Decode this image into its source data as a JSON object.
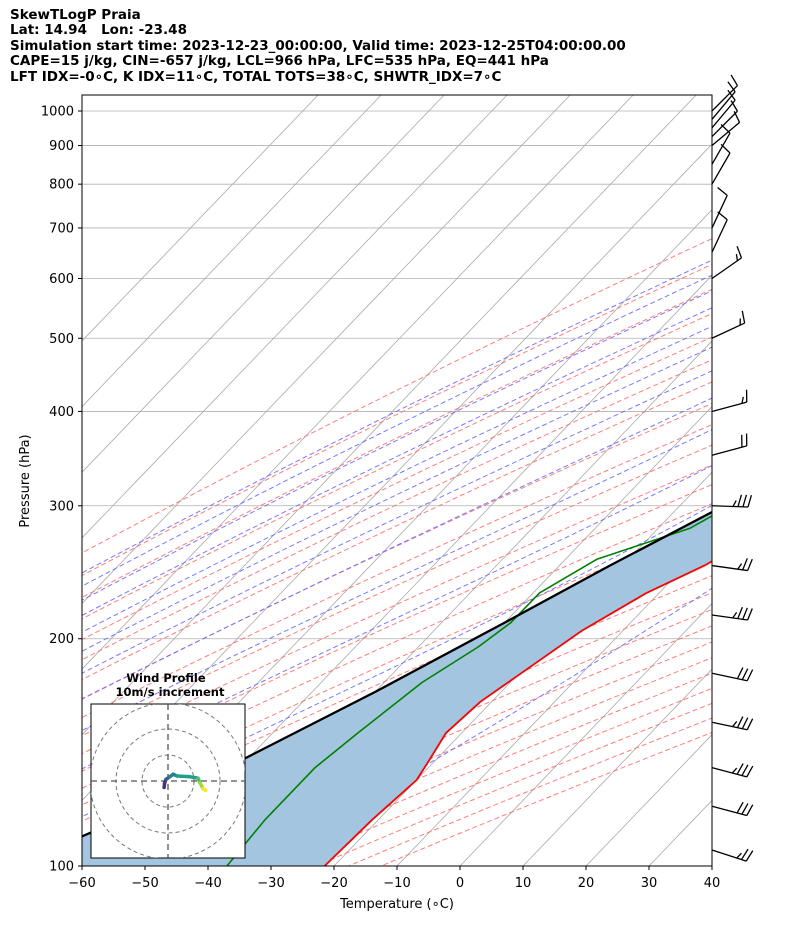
{
  "title": {
    "line1": "SkewTLogP Praia",
    "line2": "Lat: 14.94   Lon: -23.48",
    "line3": "Simulation start time: 2023-12-23_00:00:00, Valid time: 2023-12-25T04:00:00.00",
    "line4": "CAPE=15 j/kg, CIN=-657 j/kg, LCL=966 hPa, LFC=535 hPa, EQ=441 hPa",
    "line5": "LFT IDX=-0∘C, K IDX=11∘C, TOTAL TOTS=38∘C, SHWTR_IDX=7∘C"
  },
  "chart_data": {
    "type": "skew-t",
    "xlabel": "Temperature (∘C)",
    "ylabel": "Pressure (hPa)",
    "xlim": [
      -60,
      40
    ],
    "ylim": [
      1050,
      100
    ],
    "y_scale": "log",
    "x_ticks": [
      "−60",
      "−50",
      "−40",
      "−30",
      "−20",
      "−10",
      "0",
      "10",
      "20",
      "30",
      "40"
    ],
    "y_ticks": [
      "100",
      "200",
      "300",
      "400",
      "500",
      "600",
      "700",
      "800",
      "900",
      "1000"
    ],
    "grid": true,
    "series": [
      {
        "key": "temperature",
        "color": "#ff0000",
        "points": [
          [
            22.8,
            1000
          ],
          [
            20,
            970
          ],
          [
            23,
            925
          ],
          [
            24.5,
            900
          ],
          [
            25,
            850
          ],
          [
            24,
            800
          ],
          [
            22,
            750
          ],
          [
            19.5,
            700
          ],
          [
            16.5,
            650
          ],
          [
            13.5,
            600
          ],
          [
            10.5,
            550
          ],
          [
            8,
            500
          ],
          [
            5.5,
            450
          ],
          [
            3.5,
            400
          ],
          [
            1.2,
            350
          ],
          [
            0.3,
            300
          ],
          [
            -3,
            275
          ],
          [
            -7,
            250
          ],
          [
            -12,
            230
          ],
          [
            -16.5,
            205
          ],
          [
            -19,
            185
          ],
          [
            -21.8,
            165
          ],
          [
            -22.5,
            150
          ],
          [
            -21,
            138
          ],
          [
            -20,
            130
          ],
          [
            -21,
            115
          ],
          [
            -21.5,
            100
          ]
        ]
      },
      {
        "key": "dewpoint",
        "color": "#008000",
        "points": [
          [
            20,
            1000
          ],
          [
            21,
            980
          ],
          [
            0,
            905
          ],
          [
            5,
            870
          ],
          [
            5.5,
            830
          ],
          [
            3,
            780
          ],
          [
            -0.5,
            730
          ],
          [
            -3,
            680
          ],
          [
            -3,
            650
          ],
          [
            -1,
            600
          ],
          [
            1,
            550
          ],
          [
            1,
            500
          ],
          [
            -2,
            450
          ],
          [
            -9,
            400
          ],
          [
            -12,
            350
          ],
          [
            -12,
            300
          ],
          [
            -15,
            280
          ],
          [
            -25,
            255
          ],
          [
            -29,
            230
          ],
          [
            -29,
            210
          ],
          [
            -30.5,
            195
          ],
          [
            -34,
            175
          ],
          [
            -36.5,
            150
          ],
          [
            -38,
            135
          ],
          [
            -38,
            115
          ],
          [
            -37,
            100
          ]
        ]
      },
      {
        "key": "parcel",
        "color": "#000000",
        "points": [
          [
            22.8,
            1000
          ],
          [
            21,
            966
          ],
          [
            19.6,
            900
          ],
          [
            17.6,
            800
          ],
          [
            15.2,
            700
          ],
          [
            13.7,
            650
          ],
          [
            12,
            600
          ],
          [
            10.3,
            550
          ],
          [
            8,
            500
          ],
          [
            5.6,
            450
          ],
          [
            3.5,
            441
          ],
          [
            1.1,
            400
          ],
          [
            -5.5,
            350
          ],
          [
            -13,
            300
          ],
          [
            -22,
            250
          ],
          [
            -30,
            210
          ],
          [
            -40,
            170
          ],
          [
            -52,
            135
          ],
          [
            -61,
            115
          ],
          [
            -71,
            100
          ]
        ]
      }
    ],
    "cape_shading_color": "#a3c5e0",
    "isotherms_color": "#aaaaaa",
    "dry_adiabats_color": "#ff6666",
    "moist_adiabats_color": "#6a6aff",
    "mixing_ratio_color": "#9955cc",
    "wind_barbs": [
      {
        "p": 1000,
        "speed_kt": 10,
        "dir_deg": 45
      },
      {
        "p": 975,
        "speed_kt": 10,
        "dir_deg": 40
      },
      {
        "p": 950,
        "speed_kt": 10,
        "dir_deg": 40
      },
      {
        "p": 925,
        "speed_kt": 10,
        "dir_deg": 45
      },
      {
        "p": 900,
        "speed_kt": 10,
        "dir_deg": 50
      },
      {
        "p": 850,
        "speed_kt": 10,
        "dir_deg": 30
      },
      {
        "p": 800,
        "speed_kt": 10,
        "dir_deg": 30
      },
      {
        "p": 700,
        "speed_kt": 10,
        "dir_deg": 25
      },
      {
        "p": 650,
        "speed_kt": 10,
        "dir_deg": 25
      },
      {
        "p": 600,
        "speed_kt": 15,
        "dir_deg": 55
      },
      {
        "p": 500,
        "speed_kt": 15,
        "dir_deg": 65
      },
      {
        "p": 400,
        "speed_kt": 15,
        "dir_deg": 75
      },
      {
        "p": 350,
        "speed_kt": 20,
        "dir_deg": 75
      },
      {
        "p": 300,
        "speed_kt": 35,
        "dir_deg": 92
      },
      {
        "p": 250,
        "speed_kt": 25,
        "dir_deg": 98
      },
      {
        "p": 215,
        "speed_kt": 35,
        "dir_deg": 98
      },
      {
        "p": 180,
        "speed_kt": 30,
        "dir_deg": 102
      },
      {
        "p": 155,
        "speed_kt": 35,
        "dir_deg": 102
      },
      {
        "p": 135,
        "speed_kt": 35,
        "dir_deg": 105
      },
      {
        "p": 120,
        "speed_kt": 30,
        "dir_deg": 105
      },
      {
        "p": 105,
        "speed_kt": 25,
        "dir_deg": 108
      }
    ],
    "hodograph": {
      "title": "Wind Profile",
      "subtitle": "10m/s increment",
      "ring_increment_ms": 10,
      "rings": 3,
      "trace": [
        {
          "u": -1.5,
          "v": -2.5,
          "color": "#440154"
        },
        {
          "u": -1.3,
          "v": -0.8,
          "color": "#46327e"
        },
        {
          "u": -0.8,
          "v": 0.6,
          "color": "#46327e"
        },
        {
          "u": 0.5,
          "v": 1.5,
          "color": "#365c8d"
        },
        {
          "u": 2.0,
          "v": 2.6,
          "color": "#277f8e"
        },
        {
          "u": 3.5,
          "v": 1.9,
          "color": "#277f8e"
        },
        {
          "u": 8.0,
          "v": 1.7,
          "color": "#1fa187"
        },
        {
          "u": 11.5,
          "v": 1.1,
          "color": "#1fa187"
        },
        {
          "u": 12.3,
          "v": -0.7,
          "color": "#4ac16d"
        },
        {
          "u": 13.5,
          "v": -3.0,
          "color": "#9fda3a"
        },
        {
          "u": 14.5,
          "v": -3.6,
          "color": "#fde725"
        }
      ]
    }
  }
}
